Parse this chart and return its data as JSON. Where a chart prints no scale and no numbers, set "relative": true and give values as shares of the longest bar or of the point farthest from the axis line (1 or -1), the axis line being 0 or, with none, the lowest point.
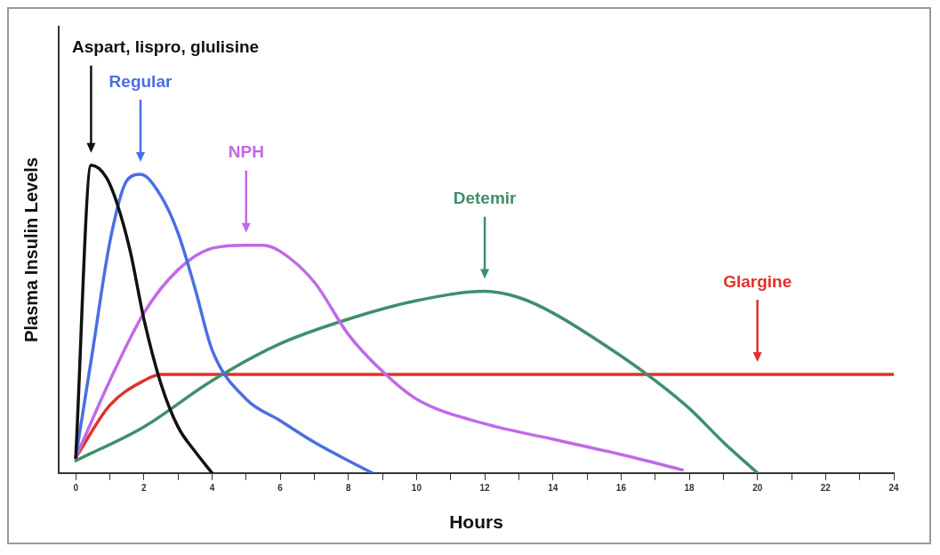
{
  "chart_data": {
    "type": "line",
    "relative": true,
    "xlabel": "Hours",
    "ylabel": "Plasma Insulin Levels",
    "xlim": [
      -0.5,
      24
    ],
    "xticks": [
      0,
      {
        "value": 1,
        "label": null
      },
      2,
      {
        "value": 3,
        "label": null
      },
      4,
      {
        "value": 5,
        "label": null
      },
      6,
      {
        "value": 7,
        "label": null
      },
      8,
      {
        "value": 9,
        "label": null
      },
      10,
      {
        "value": 11,
        "label": null
      },
      12,
      {
        "value": 13,
        "label": null
      },
      14,
      {
        "value": 15,
        "label": null
      },
      16,
      {
        "value": 17,
        "label": null
      },
      18,
      {
        "value": 19,
        "label": null
      },
      20,
      {
        "value": 21,
        "label": null
      },
      22,
      {
        "value": 23,
        "label": null
      },
      24
    ],
    "grid": false,
    "legend": false,
    "marker": "none",
    "line_style": "solid",
    "series": [
      {
        "name": "Aspart, lispro, glulisine",
        "color": "#111111",
        "x": [
          0,
          0.45,
          0.9,
          1.2,
          1.6,
          2,
          2.5,
          3,
          3.5,
          4
        ],
        "values": [
          0.05,
          1,
          0.96,
          0.88,
          0.72,
          0.5,
          0.29,
          0.15,
          0.07,
          0
        ]
      },
      {
        "name": "Regular",
        "color": "#4a6fe3",
        "x": [
          0,
          0.5,
          1,
          1.5,
          1.9,
          2.5,
          3,
          3.5,
          4,
          5,
          6,
          7,
          8,
          8.7
        ],
        "values": [
          0.05,
          0.4,
          0.75,
          0.95,
          0.97,
          0.9,
          0.78,
          0.6,
          0.4,
          0.24,
          0.17,
          0.1,
          0.04,
          0
        ]
      },
      {
        "name": "NPH",
        "color": "#c06ae6",
        "x": [
          0,
          1,
          2,
          3,
          4,
          5,
          5.5,
          6,
          7,
          8,
          9,
          10,
          12,
          14,
          16,
          17.8
        ],
        "values": [
          0.05,
          0.3,
          0.52,
          0.66,
          0.73,
          0.74,
          0.74,
          0.72,
          0.62,
          0.45,
          0.33,
          0.24,
          0.16,
          0.11,
          0.06,
          0.01
        ]
      },
      {
        "name": "Detemir",
        "color": "#3f8f6a",
        "x": [
          0,
          2,
          4,
          6,
          8,
          10,
          12,
          13,
          14,
          16,
          17,
          18,
          19,
          20
        ],
        "values": [
          0.04,
          0.15,
          0.3,
          0.42,
          0.5,
          0.56,
          0.59,
          0.57,
          0.52,
          0.38,
          0.3,
          0.21,
          0.1,
          0
        ]
      },
      {
        "name": "Glargine",
        "color": "#e0322a",
        "x": [
          0,
          1,
          2,
          2.5,
          20,
          24
        ],
        "values": [
          0.05,
          0.22,
          0.3,
          0.32,
          0.32,
          0.32
        ]
      }
    ]
  }
}
